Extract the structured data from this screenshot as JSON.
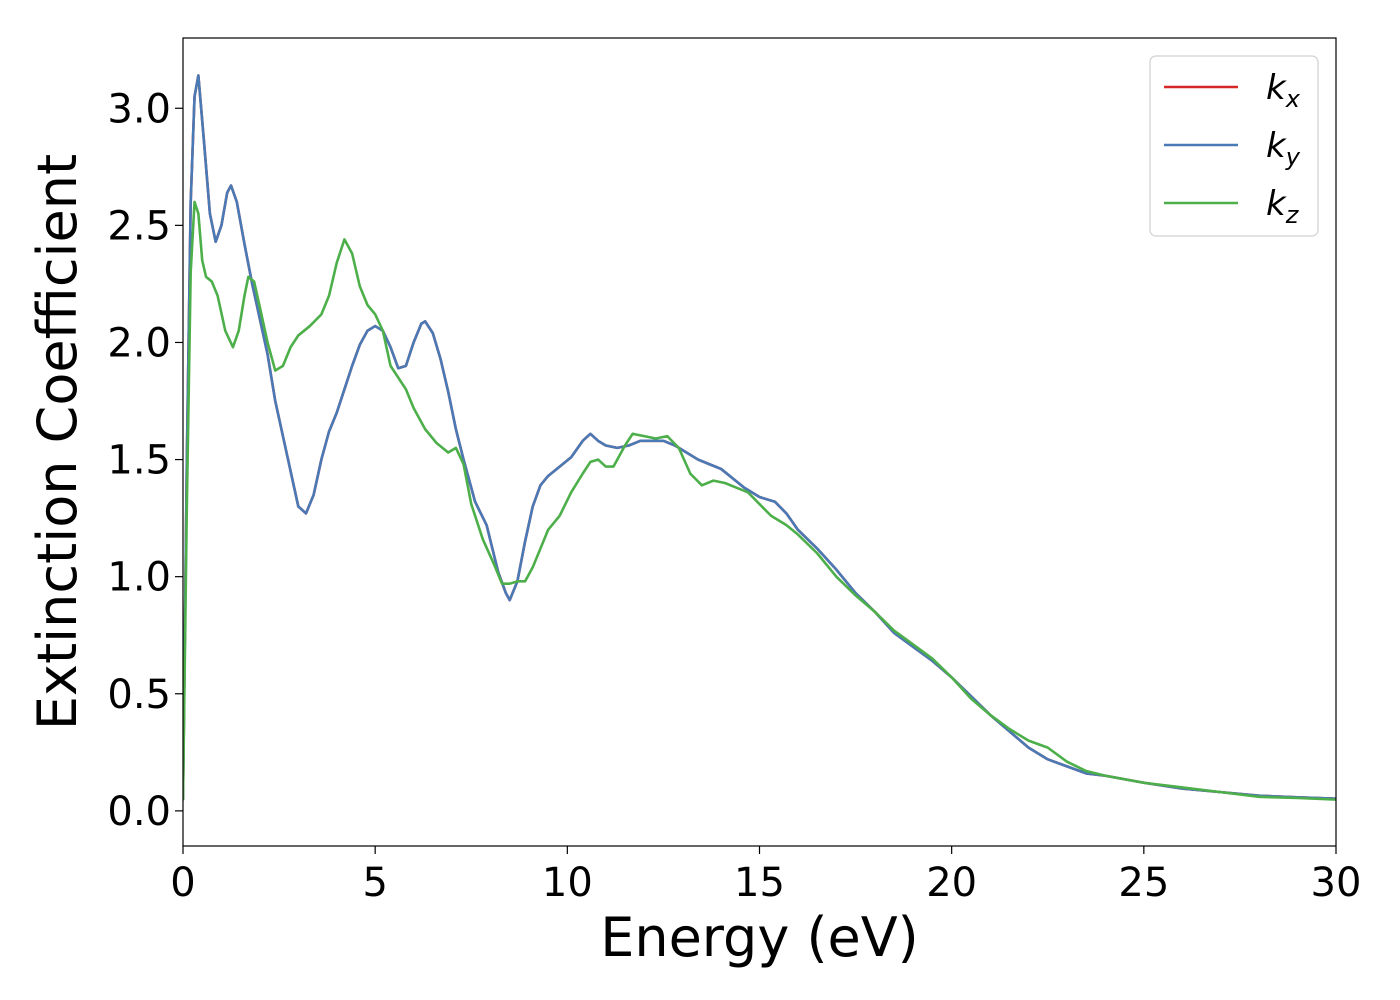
{
  "chart_data": {
    "type": "line",
    "xlabel": "Energy (eV)",
    "ylabel": "Extinction Coefficient",
    "xlim": [
      0,
      30
    ],
    "ylim": [
      -0.15,
      3.3
    ],
    "x_ticks": [
      "0",
      "5",
      "10",
      "15",
      "20",
      "25",
      "30"
    ],
    "y_ticks": [
      "0.0",
      "0.5",
      "1.0",
      "1.5",
      "2.0",
      "2.5",
      "3.0"
    ],
    "grid": false,
    "legend_position": "top-right",
    "series": [
      {
        "name": "k",
        "subscript": "x",
        "color": "#d62728",
        "points": [
          [
            0,
            0.05
          ],
          [
            0.1,
            1.5
          ],
          [
            0.2,
            2.6
          ],
          [
            0.3,
            3.05
          ],
          [
            0.4,
            3.14
          ],
          [
            0.55,
            2.85
          ],
          [
            0.7,
            2.55
          ],
          [
            0.85,
            2.43
          ],
          [
            1.0,
            2.5
          ],
          [
            1.15,
            2.64
          ],
          [
            1.25,
            2.67
          ],
          [
            1.4,
            2.6
          ],
          [
            1.6,
            2.42
          ],
          [
            1.8,
            2.25
          ],
          [
            2.0,
            2.1
          ],
          [
            2.2,
            1.95
          ],
          [
            2.4,
            1.75
          ],
          [
            2.6,
            1.6
          ],
          [
            2.8,
            1.45
          ],
          [
            3.0,
            1.3
          ],
          [
            3.2,
            1.27
          ],
          [
            3.4,
            1.35
          ],
          [
            3.6,
            1.5
          ],
          [
            3.8,
            1.62
          ],
          [
            4.0,
            1.7
          ],
          [
            4.2,
            1.8
          ],
          [
            4.4,
            1.9
          ],
          [
            4.6,
            1.99
          ],
          [
            4.8,
            2.05
          ],
          [
            5.0,
            2.07
          ],
          [
            5.2,
            2.05
          ],
          [
            5.4,
            1.98
          ],
          [
            5.6,
            1.89
          ],
          [
            5.8,
            1.9
          ],
          [
            6.0,
            2.0
          ],
          [
            6.2,
            2.08
          ],
          [
            6.3,
            2.09
          ],
          [
            6.5,
            2.04
          ],
          [
            6.7,
            1.93
          ],
          [
            6.9,
            1.79
          ],
          [
            7.1,
            1.63
          ],
          [
            7.3,
            1.5
          ],
          [
            7.6,
            1.32
          ],
          [
            7.9,
            1.22
          ],
          [
            8.2,
            1.02
          ],
          [
            8.4,
            0.93
          ],
          [
            8.5,
            0.9
          ],
          [
            8.7,
            0.98
          ],
          [
            8.9,
            1.15
          ],
          [
            9.1,
            1.3
          ],
          [
            9.3,
            1.39
          ],
          [
            9.5,
            1.43
          ],
          [
            9.8,
            1.47
          ],
          [
            10.1,
            1.51
          ],
          [
            10.4,
            1.58
          ],
          [
            10.6,
            1.61
          ],
          [
            10.8,
            1.58
          ],
          [
            11.0,
            1.56
          ],
          [
            11.3,
            1.55
          ],
          [
            11.6,
            1.56
          ],
          [
            11.9,
            1.58
          ],
          [
            12.2,
            1.58
          ],
          [
            12.5,
            1.58
          ],
          [
            12.8,
            1.56
          ],
          [
            13.1,
            1.53
          ],
          [
            13.4,
            1.5
          ],
          [
            13.7,
            1.48
          ],
          [
            14.0,
            1.46
          ],
          [
            14.3,
            1.42
          ],
          [
            14.6,
            1.38
          ],
          [
            15.0,
            1.34
          ],
          [
            15.4,
            1.32
          ],
          [
            15.7,
            1.27
          ],
          [
            16.0,
            1.2
          ],
          [
            16.5,
            1.12
          ],
          [
            17.0,
            1.03
          ],
          [
            17.5,
            0.93
          ],
          [
            18.0,
            0.85
          ],
          [
            18.5,
            0.76
          ],
          [
            19.0,
            0.7
          ],
          [
            19.5,
            0.64
          ],
          [
            20.0,
            0.57
          ],
          [
            20.5,
            0.49
          ],
          [
            21.0,
            0.41
          ],
          [
            21.5,
            0.34
          ],
          [
            22.0,
            0.27
          ],
          [
            22.5,
            0.22
          ],
          [
            23.0,
            0.19
          ],
          [
            23.5,
            0.16
          ],
          [
            24.0,
            0.15
          ],
          [
            25.0,
            0.12
          ],
          [
            26.0,
            0.095
          ],
          [
            27.0,
            0.08
          ],
          [
            28.0,
            0.065
          ],
          [
            29.0,
            0.058
          ],
          [
            30.0,
            0.052
          ]
        ]
      },
      {
        "name": "k",
        "subscript": "y",
        "color": "#4a7ab5",
        "points": [
          [
            0,
            0.05
          ],
          [
            0.1,
            1.5
          ],
          [
            0.2,
            2.6
          ],
          [
            0.3,
            3.05
          ],
          [
            0.4,
            3.14
          ],
          [
            0.55,
            2.85
          ],
          [
            0.7,
            2.55
          ],
          [
            0.85,
            2.43
          ],
          [
            1.0,
            2.5
          ],
          [
            1.15,
            2.64
          ],
          [
            1.25,
            2.67
          ],
          [
            1.4,
            2.6
          ],
          [
            1.6,
            2.42
          ],
          [
            1.8,
            2.25
          ],
          [
            2.0,
            2.1
          ],
          [
            2.2,
            1.95
          ],
          [
            2.4,
            1.75
          ],
          [
            2.6,
            1.6
          ],
          [
            2.8,
            1.45
          ],
          [
            3.0,
            1.3
          ],
          [
            3.2,
            1.27
          ],
          [
            3.4,
            1.35
          ],
          [
            3.6,
            1.5
          ],
          [
            3.8,
            1.62
          ],
          [
            4.0,
            1.7
          ],
          [
            4.2,
            1.8
          ],
          [
            4.4,
            1.9
          ],
          [
            4.6,
            1.99
          ],
          [
            4.8,
            2.05
          ],
          [
            5.0,
            2.07
          ],
          [
            5.2,
            2.05
          ],
          [
            5.4,
            1.98
          ],
          [
            5.6,
            1.89
          ],
          [
            5.8,
            1.9
          ],
          [
            6.0,
            2.0
          ],
          [
            6.2,
            2.08
          ],
          [
            6.3,
            2.09
          ],
          [
            6.5,
            2.04
          ],
          [
            6.7,
            1.93
          ],
          [
            6.9,
            1.79
          ],
          [
            7.1,
            1.63
          ],
          [
            7.3,
            1.5
          ],
          [
            7.6,
            1.32
          ],
          [
            7.9,
            1.22
          ],
          [
            8.2,
            1.02
          ],
          [
            8.4,
            0.93
          ],
          [
            8.5,
            0.9
          ],
          [
            8.7,
            0.98
          ],
          [
            8.9,
            1.15
          ],
          [
            9.1,
            1.3
          ],
          [
            9.3,
            1.39
          ],
          [
            9.5,
            1.43
          ],
          [
            9.8,
            1.47
          ],
          [
            10.1,
            1.51
          ],
          [
            10.4,
            1.58
          ],
          [
            10.6,
            1.61
          ],
          [
            10.8,
            1.58
          ],
          [
            11.0,
            1.56
          ],
          [
            11.3,
            1.55
          ],
          [
            11.6,
            1.56
          ],
          [
            11.9,
            1.58
          ],
          [
            12.2,
            1.58
          ],
          [
            12.5,
            1.58
          ],
          [
            12.8,
            1.56
          ],
          [
            13.1,
            1.53
          ],
          [
            13.4,
            1.5
          ],
          [
            13.7,
            1.48
          ],
          [
            14.0,
            1.46
          ],
          [
            14.3,
            1.42
          ],
          [
            14.6,
            1.38
          ],
          [
            15.0,
            1.34
          ],
          [
            15.4,
            1.32
          ],
          [
            15.7,
            1.27
          ],
          [
            16.0,
            1.2
          ],
          [
            16.5,
            1.12
          ],
          [
            17.0,
            1.03
          ],
          [
            17.5,
            0.93
          ],
          [
            18.0,
            0.85
          ],
          [
            18.5,
            0.76
          ],
          [
            19.0,
            0.7
          ],
          [
            19.5,
            0.64
          ],
          [
            20.0,
            0.57
          ],
          [
            20.5,
            0.49
          ],
          [
            21.0,
            0.41
          ],
          [
            21.5,
            0.34
          ],
          [
            22.0,
            0.27
          ],
          [
            22.5,
            0.22
          ],
          [
            23.0,
            0.19
          ],
          [
            23.5,
            0.16
          ],
          [
            24.0,
            0.15
          ],
          [
            25.0,
            0.12
          ],
          [
            26.0,
            0.095
          ],
          [
            27.0,
            0.08
          ],
          [
            28.0,
            0.065
          ],
          [
            29.0,
            0.058
          ],
          [
            30.0,
            0.052
          ]
        ]
      },
      {
        "name": "k",
        "subscript": "z",
        "color": "#4daf4a",
        "points": [
          [
            0,
            0.05
          ],
          [
            0.1,
            1.3
          ],
          [
            0.2,
            2.3
          ],
          [
            0.3,
            2.6
          ],
          [
            0.4,
            2.55
          ],
          [
            0.5,
            2.35
          ],
          [
            0.6,
            2.28
          ],
          [
            0.75,
            2.26
          ],
          [
            0.9,
            2.2
          ],
          [
            1.1,
            2.05
          ],
          [
            1.3,
            1.98
          ],
          [
            1.45,
            2.05
          ],
          [
            1.6,
            2.2
          ],
          [
            1.7,
            2.28
          ],
          [
            1.85,
            2.26
          ],
          [
            2.0,
            2.15
          ],
          [
            2.2,
            2.0
          ],
          [
            2.4,
            1.88
          ],
          [
            2.6,
            1.9
          ],
          [
            2.8,
            1.98
          ],
          [
            3.0,
            2.03
          ],
          [
            3.3,
            2.07
          ],
          [
            3.6,
            2.12
          ],
          [
            3.8,
            2.2
          ],
          [
            4.0,
            2.34
          ],
          [
            4.2,
            2.44
          ],
          [
            4.4,
            2.38
          ],
          [
            4.6,
            2.24
          ],
          [
            4.8,
            2.16
          ],
          [
            5.0,
            2.12
          ],
          [
            5.2,
            2.05
          ],
          [
            5.4,
            1.9
          ],
          [
            5.6,
            1.85
          ],
          [
            5.8,
            1.8
          ],
          [
            6.0,
            1.72
          ],
          [
            6.3,
            1.63
          ],
          [
            6.6,
            1.57
          ],
          [
            6.9,
            1.53
          ],
          [
            7.1,
            1.55
          ],
          [
            7.3,
            1.48
          ],
          [
            7.5,
            1.31
          ],
          [
            7.8,
            1.16
          ],
          [
            8.1,
            1.05
          ],
          [
            8.3,
            0.97
          ],
          [
            8.5,
            0.97
          ],
          [
            8.7,
            0.98
          ],
          [
            8.9,
            0.98
          ],
          [
            9.1,
            1.04
          ],
          [
            9.3,
            1.12
          ],
          [
            9.5,
            1.2
          ],
          [
            9.8,
            1.26
          ],
          [
            10.1,
            1.36
          ],
          [
            10.4,
            1.44
          ],
          [
            10.6,
            1.49
          ],
          [
            10.8,
            1.5
          ],
          [
            11.0,
            1.47
          ],
          [
            11.2,
            1.47
          ],
          [
            11.5,
            1.56
          ],
          [
            11.7,
            1.61
          ],
          [
            12.0,
            1.6
          ],
          [
            12.3,
            1.59
          ],
          [
            12.6,
            1.6
          ],
          [
            12.9,
            1.55
          ],
          [
            13.2,
            1.44
          ],
          [
            13.5,
            1.39
          ],
          [
            13.8,
            1.41
          ],
          [
            14.1,
            1.4
          ],
          [
            14.4,
            1.38
          ],
          [
            14.7,
            1.36
          ],
          [
            15.0,
            1.31
          ],
          [
            15.3,
            1.26
          ],
          [
            15.7,
            1.22
          ],
          [
            16.0,
            1.18
          ],
          [
            16.5,
            1.1
          ],
          [
            17.0,
            1.0
          ],
          [
            17.5,
            0.92
          ],
          [
            18.0,
            0.85
          ],
          [
            18.5,
            0.77
          ],
          [
            19.0,
            0.71
          ],
          [
            19.5,
            0.65
          ],
          [
            20.0,
            0.57
          ],
          [
            20.5,
            0.48
          ],
          [
            21.0,
            0.41
          ],
          [
            21.5,
            0.35
          ],
          [
            22.0,
            0.3
          ],
          [
            22.5,
            0.27
          ],
          [
            23.0,
            0.21
          ],
          [
            23.5,
            0.17
          ],
          [
            24.0,
            0.15
          ],
          [
            25.0,
            0.12
          ],
          [
            26.0,
            0.1
          ],
          [
            27.0,
            0.08
          ],
          [
            28.0,
            0.06
          ],
          [
            29.0,
            0.055
          ],
          [
            30.0,
            0.048
          ]
        ]
      }
    ]
  }
}
